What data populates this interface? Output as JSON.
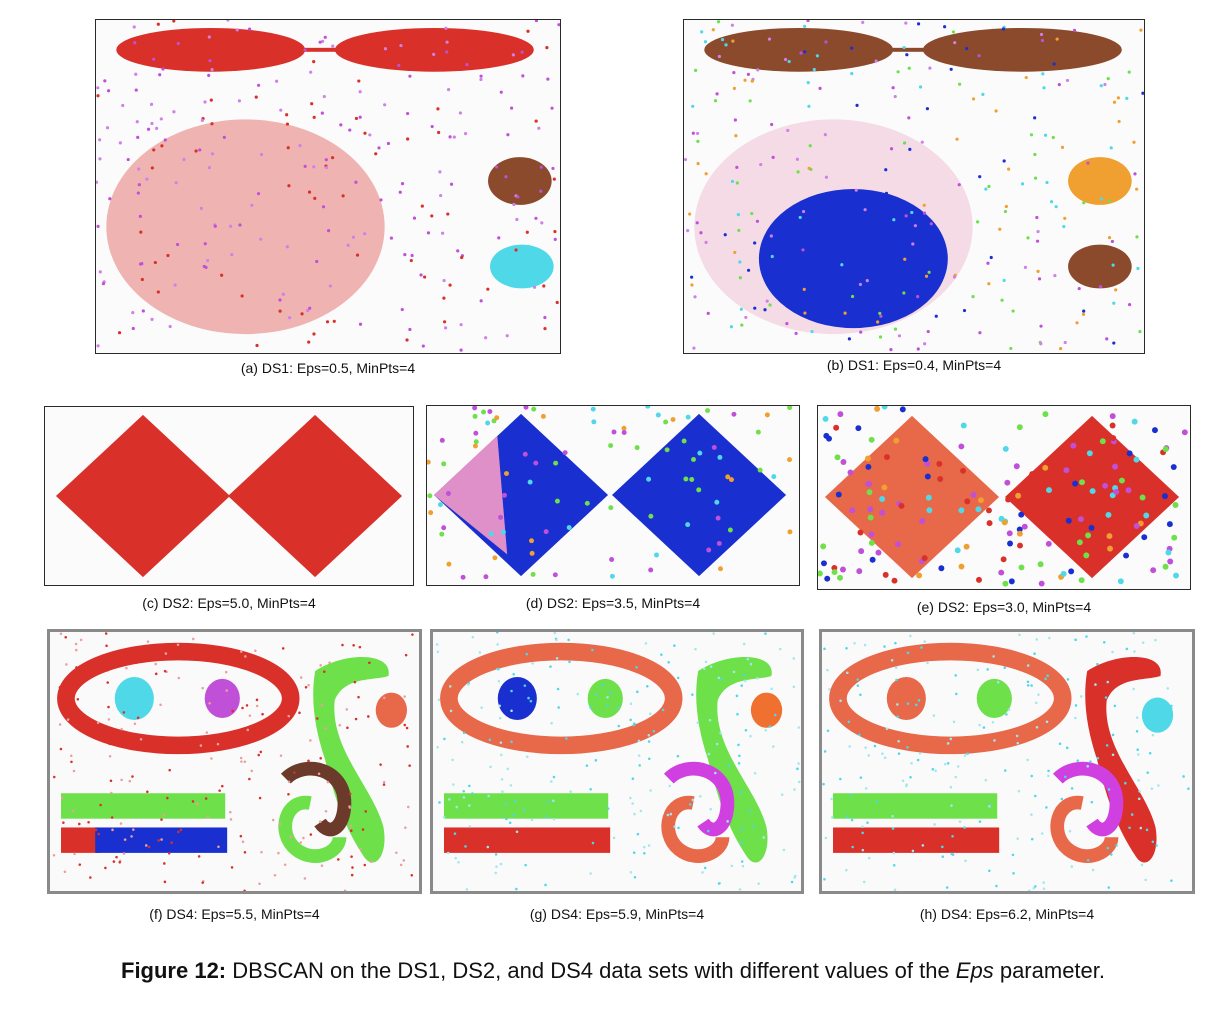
{
  "panels": [
    {
      "id": "a",
      "caption": "(a) DS1: Eps=0.5, MinPts=4"
    },
    {
      "id": "b",
      "caption": "(b) DS1: Eps=0.4, MinPts=4"
    },
    {
      "id": "c",
      "caption": "(c) DS2: Eps=5.0, MinPts=4"
    },
    {
      "id": "d",
      "caption": "(d) DS2: Eps=3.5, MinPts=4"
    },
    {
      "id": "e",
      "caption": "(e) DS2: Eps=3.0, MinPts=4"
    },
    {
      "id": "f",
      "caption": "(f) DS4: Eps=5.5, MinPts=4"
    },
    {
      "id": "g",
      "caption": "(g) DS4: Eps=5.9, MinPts=4"
    },
    {
      "id": "h",
      "caption": "(h) DS4: Eps=6.2, MinPts=4"
    }
  ],
  "figure_caption": {
    "label": "Figure 12:",
    "text_before": " DBSCAN on the DS1, DS2, and DS4 data sets with different values of the ",
    "italic": "Eps",
    "text_after": " parameter."
  },
  "colors": {
    "red": "#d9302a",
    "brown": "#8b4a2b",
    "magenta": "#c050d8",
    "cyan": "#4fd8e8",
    "blue": "#1a2fd0",
    "green": "#6de04a",
    "orange": "#f0a030",
    "salmon": "#e8684a"
  }
}
